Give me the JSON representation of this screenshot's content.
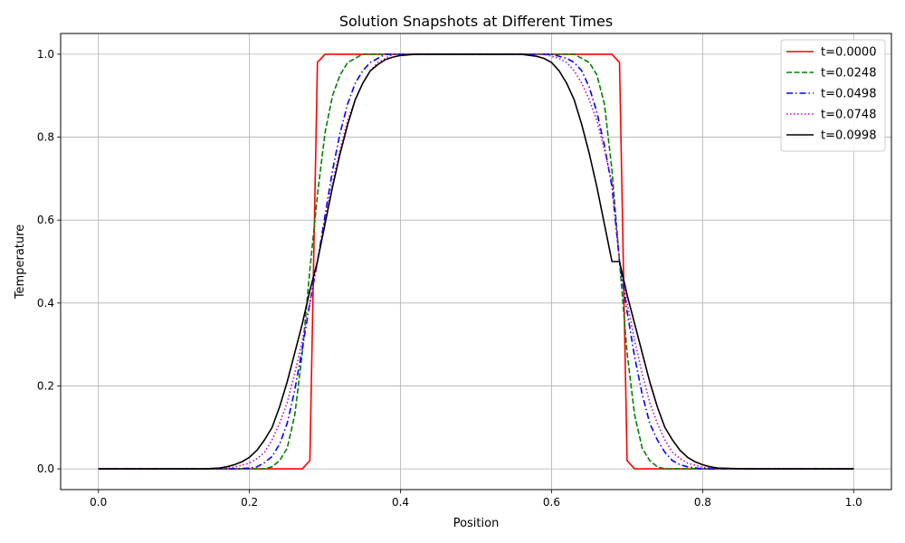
{
  "chart_data": {
    "type": "line",
    "title": "Solution Snapshots at Different Times",
    "xlabel": "Position",
    "ylabel": "Temperature",
    "xlim": [
      -0.05,
      1.05
    ],
    "ylim": [
      -0.05,
      1.05
    ],
    "xticks": [
      0.0,
      0.2,
      0.4,
      0.6,
      0.8,
      1.0
    ],
    "xtick_labels": [
      "0.0",
      "0.2",
      "0.4",
      "0.6",
      "0.8",
      "1.0"
    ],
    "yticks": [
      0.0,
      0.2,
      0.4,
      0.6,
      0.8,
      1.0
    ],
    "ytick_labels": [
      "0.0",
      "0.2",
      "0.4",
      "0.6",
      "0.8",
      "1.0"
    ],
    "grid": true,
    "legend_position": "top-right",
    "series": [
      {
        "name": "t=0.0000",
        "color": "#ff0000",
        "style": "solid",
        "x": [
          0.0,
          0.27,
          0.28,
          0.29,
          0.3,
          0.31,
          0.4,
          0.5,
          0.6,
          0.68,
          0.69,
          0.7,
          0.71,
          0.72,
          1.0
        ],
        "y": [
          0.0,
          0.0,
          0.02,
          0.98,
          1.0,
          1.0,
          1.0,
          1.0,
          1.0,
          1.0,
          0.98,
          0.02,
          0.0,
          0.0,
          0.0
        ]
      },
      {
        "name": "t=0.0248",
        "color": "#008000",
        "style": "dashed",
        "x": [
          0.0,
          0.2,
          0.22,
          0.23,
          0.24,
          0.25,
          0.26,
          0.27,
          0.28,
          0.29,
          0.3,
          0.31,
          0.32,
          0.33,
          0.34,
          0.35,
          0.37,
          0.4,
          0.5,
          0.6,
          0.63,
          0.65,
          0.66,
          0.67,
          0.68,
          0.69,
          0.7,
          0.71,
          0.72,
          0.73,
          0.74,
          0.75,
          0.76,
          0.77,
          0.78,
          0.8,
          1.0
        ],
        "y": [
          0.0,
          0.0,
          0.0,
          0.005,
          0.02,
          0.05,
          0.13,
          0.28,
          0.48,
          0.66,
          0.81,
          0.9,
          0.95,
          0.98,
          0.99,
          1.0,
          1.0,
          1.0,
          1.0,
          1.0,
          1.0,
          0.98,
          0.95,
          0.88,
          0.72,
          0.5,
          0.28,
          0.13,
          0.05,
          0.02,
          0.005,
          0.0,
          0.0,
          0.0,
          0.0,
          0.0,
          0.0
        ]
      },
      {
        "name": "t=0.0498",
        "color": "#0000ff",
        "style": "dashdot",
        "x": [
          0.0,
          0.18,
          0.2,
          0.21,
          0.22,
          0.23,
          0.24,
          0.25,
          0.26,
          0.27,
          0.28,
          0.29,
          0.3,
          0.31,
          0.32,
          0.33,
          0.34,
          0.35,
          0.36,
          0.37,
          0.38,
          0.4,
          0.5,
          0.6,
          0.62,
          0.63,
          0.64,
          0.65,
          0.66,
          0.67,
          0.68,
          0.69,
          0.7,
          0.71,
          0.72,
          0.73,
          0.74,
          0.75,
          0.76,
          0.77,
          0.78,
          0.8,
          0.82,
          1.0
        ],
        "y": [
          0.0,
          0.0,
          0.002,
          0.005,
          0.015,
          0.03,
          0.06,
          0.11,
          0.19,
          0.29,
          0.4,
          0.5,
          0.61,
          0.72,
          0.81,
          0.88,
          0.93,
          0.96,
          0.98,
          0.99,
          1.0,
          1.0,
          1.0,
          1.0,
          0.99,
          0.98,
          0.96,
          0.92,
          0.86,
          0.78,
          0.68,
          0.5,
          0.38,
          0.27,
          0.18,
          0.11,
          0.07,
          0.04,
          0.02,
          0.01,
          0.005,
          0.0,
          0.0,
          0.0
        ]
      },
      {
        "name": "t=0.0748",
        "color": "#bf00bf",
        "style": "dotted",
        "x": [
          0.0,
          0.16,
          0.18,
          0.2,
          0.21,
          0.22,
          0.23,
          0.24,
          0.25,
          0.26,
          0.27,
          0.28,
          0.29,
          0.3,
          0.31,
          0.32,
          0.33,
          0.34,
          0.35,
          0.36,
          0.37,
          0.38,
          0.39,
          0.41,
          0.5,
          0.59,
          0.61,
          0.62,
          0.63,
          0.64,
          0.65,
          0.66,
          0.67,
          0.68,
          0.69,
          0.7,
          0.71,
          0.72,
          0.73,
          0.74,
          0.75,
          0.76,
          0.77,
          0.78,
          0.8,
          0.82,
          0.84,
          1.0
        ],
        "y": [
          0.0,
          0.0,
          0.004,
          0.014,
          0.025,
          0.04,
          0.07,
          0.11,
          0.16,
          0.23,
          0.31,
          0.4,
          0.5,
          0.6,
          0.69,
          0.77,
          0.84,
          0.89,
          0.93,
          0.96,
          0.98,
          0.99,
          1.0,
          1.0,
          1.0,
          1.0,
          0.99,
          0.98,
          0.96,
          0.93,
          0.89,
          0.84,
          0.77,
          0.69,
          0.5,
          0.4,
          0.31,
          0.23,
          0.16,
          0.11,
          0.07,
          0.04,
          0.025,
          0.014,
          0.004,
          0.001,
          0.0,
          0.0
        ]
      },
      {
        "name": "t=0.0998",
        "color": "#000000",
        "style": "solid",
        "x": [
          0.0,
          0.14,
          0.16,
          0.17,
          0.18,
          0.19,
          0.2,
          0.21,
          0.22,
          0.23,
          0.24,
          0.25,
          0.26,
          0.27,
          0.28,
          0.29,
          0.3,
          0.31,
          0.32,
          0.33,
          0.34,
          0.35,
          0.36,
          0.37,
          0.38,
          0.39,
          0.4,
          0.42,
          0.5,
          0.56,
          0.58,
          0.59,
          0.6,
          0.61,
          0.62,
          0.63,
          0.64,
          0.65,
          0.66,
          0.67,
          0.68,
          0.69,
          0.7,
          0.71,
          0.72,
          0.73,
          0.74,
          0.75,
          0.76,
          0.77,
          0.78,
          0.79,
          0.8,
          0.81,
          0.82,
          0.84,
          0.86,
          1.0
        ],
        "y": [
          0.0,
          0.0,
          0.002,
          0.005,
          0.01,
          0.017,
          0.028,
          0.045,
          0.07,
          0.1,
          0.15,
          0.21,
          0.28,
          0.35,
          0.43,
          0.5,
          0.59,
          0.68,
          0.76,
          0.83,
          0.89,
          0.93,
          0.96,
          0.975,
          0.987,
          0.993,
          0.997,
          1.0,
          1.0,
          1.0,
          0.995,
          0.99,
          0.98,
          0.96,
          0.93,
          0.89,
          0.83,
          0.76,
          0.68,
          0.59,
          0.5,
          0.5,
          0.42,
          0.35,
          0.28,
          0.21,
          0.15,
          0.1,
          0.07,
          0.045,
          0.028,
          0.017,
          0.01,
          0.005,
          0.002,
          0.001,
          0.0,
          0.0
        ]
      }
    ]
  }
}
